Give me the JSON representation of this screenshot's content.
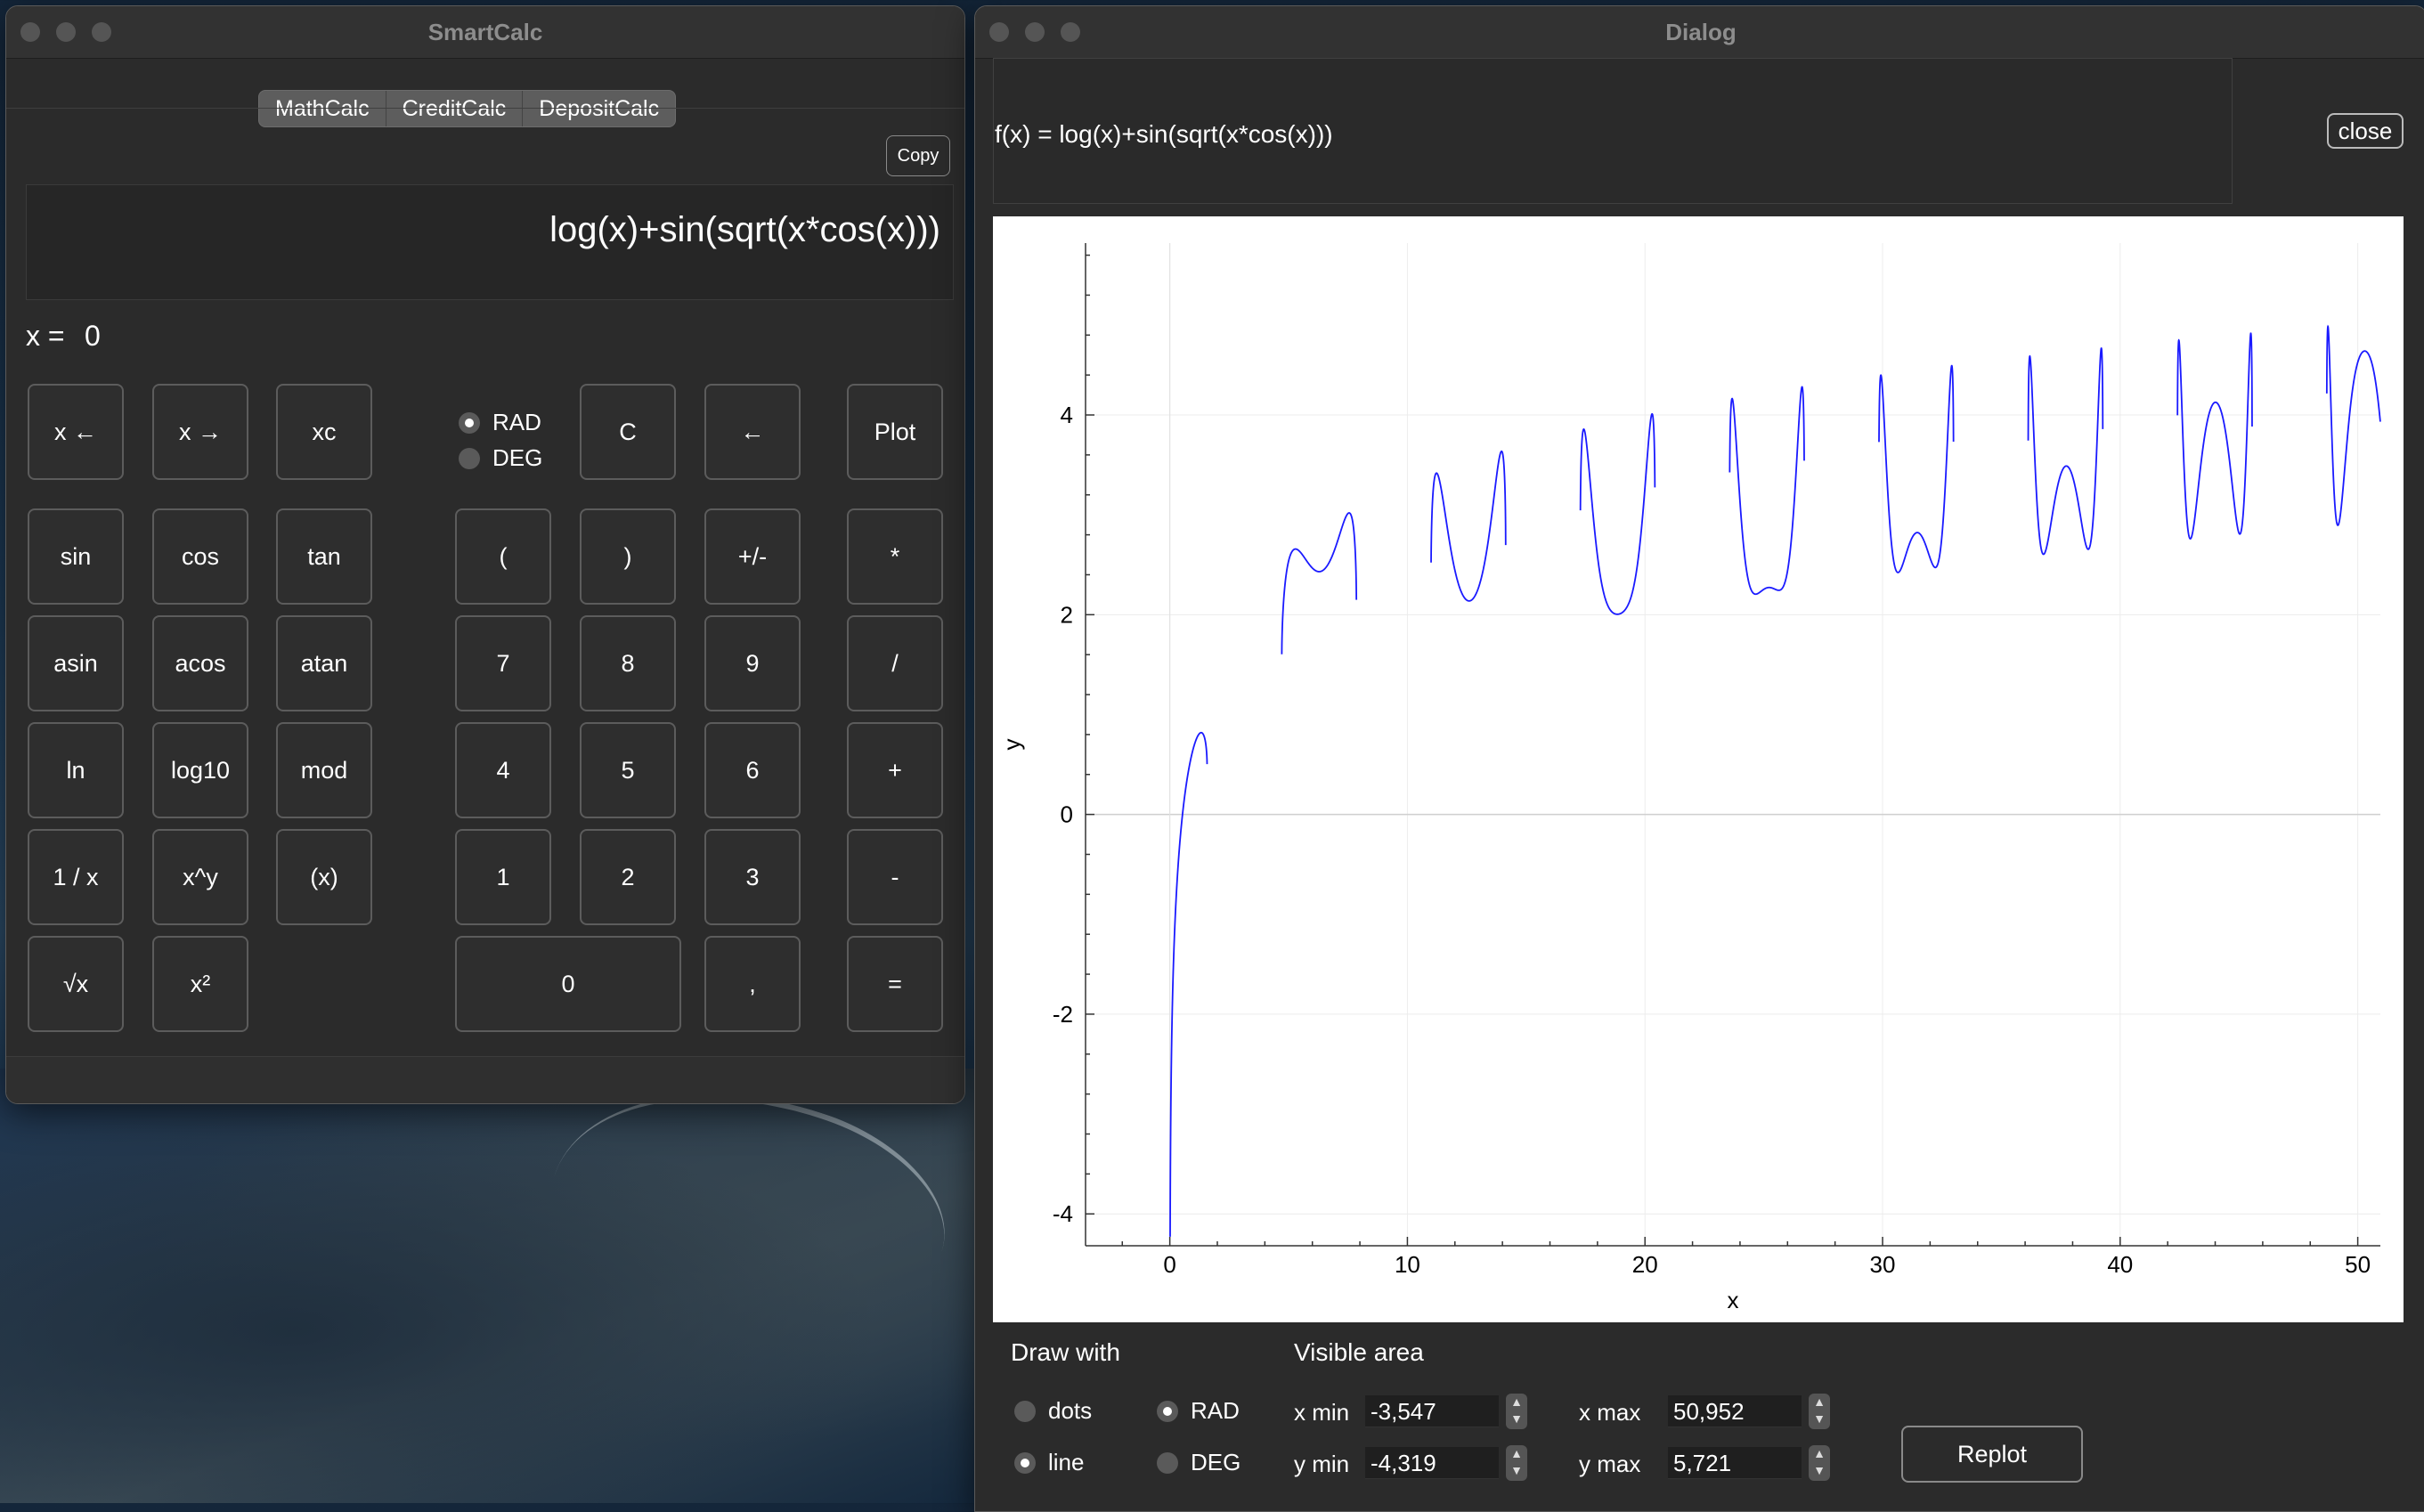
{
  "calc": {
    "title": "SmartCalc",
    "tabs": [
      "MathCalc",
      "CreditCalc",
      "DepositCalc"
    ],
    "copy_label": "Copy",
    "expression": "log(x)+sin(sqrt(x*cos(x)))",
    "x_label": "x =",
    "x_value": "0",
    "angle_modes": [
      "RAD",
      "DEG"
    ],
    "angle_selected": "RAD",
    "buttons": {
      "x_left": "x ←",
      "x_right": "x →",
      "xc": "xc",
      "clear": "C",
      "backspace": "←",
      "plot": "Plot",
      "sin": "sin",
      "cos": "cos",
      "tan": "tan",
      "lparen": "(",
      "rparen": ")",
      "sign": "+/-",
      "mul": "*",
      "asin": "asin",
      "acos": "acos",
      "atan": "atan",
      "d7": "7",
      "d8": "8",
      "d9": "9",
      "div": "/",
      "ln": "ln",
      "log10": "log10",
      "mod": "mod",
      "d4": "4",
      "d5": "5",
      "d6": "6",
      "plus": "+",
      "inv": "1 / x",
      "pow": "x^y",
      "xvar": "(x)",
      "d1": "1",
      "d2": "2",
      "d3": "3",
      "minus": "-",
      "sqrt": "√x",
      "sq": "x²",
      "d0": "0",
      "comma": ",",
      "equals": "="
    }
  },
  "dialog": {
    "title": "Dialog",
    "formula": "f(x) = log(x)+sin(sqrt(x*cos(x)))",
    "close_label": "close",
    "draw_with_label": "Draw with",
    "draw_modes": [
      "dots",
      "line"
    ],
    "draw_selected": "line",
    "angle_modes": [
      "RAD",
      "DEG"
    ],
    "angle_selected": "RAD",
    "visible_area_label": "Visible area",
    "xmin_label": "x min",
    "xmin": "-3,547",
    "xmax_label": "x max",
    "xmax": "50,952",
    "ymin_label": "y min",
    "ymin": "-4,319",
    "ymax_label": "y max",
    "ymax": "5,721",
    "replot_label": "Replot"
  },
  "chart_data": {
    "type": "line",
    "title": "",
    "xlabel": "x",
    "ylabel": "y",
    "xlim": [
      -3.547,
      50.952
    ],
    "ylim": [
      -4.319,
      5.721
    ],
    "x_ticks": [
      0,
      10,
      20,
      30,
      40,
      50
    ],
    "y_ticks": [
      -4,
      -2,
      0,
      2,
      4
    ],
    "grid": true,
    "series": [
      {
        "function": "log(x)+sin(sqrt(x*cos(x)))",
        "color": "#1a1aff"
      }
    ]
  }
}
